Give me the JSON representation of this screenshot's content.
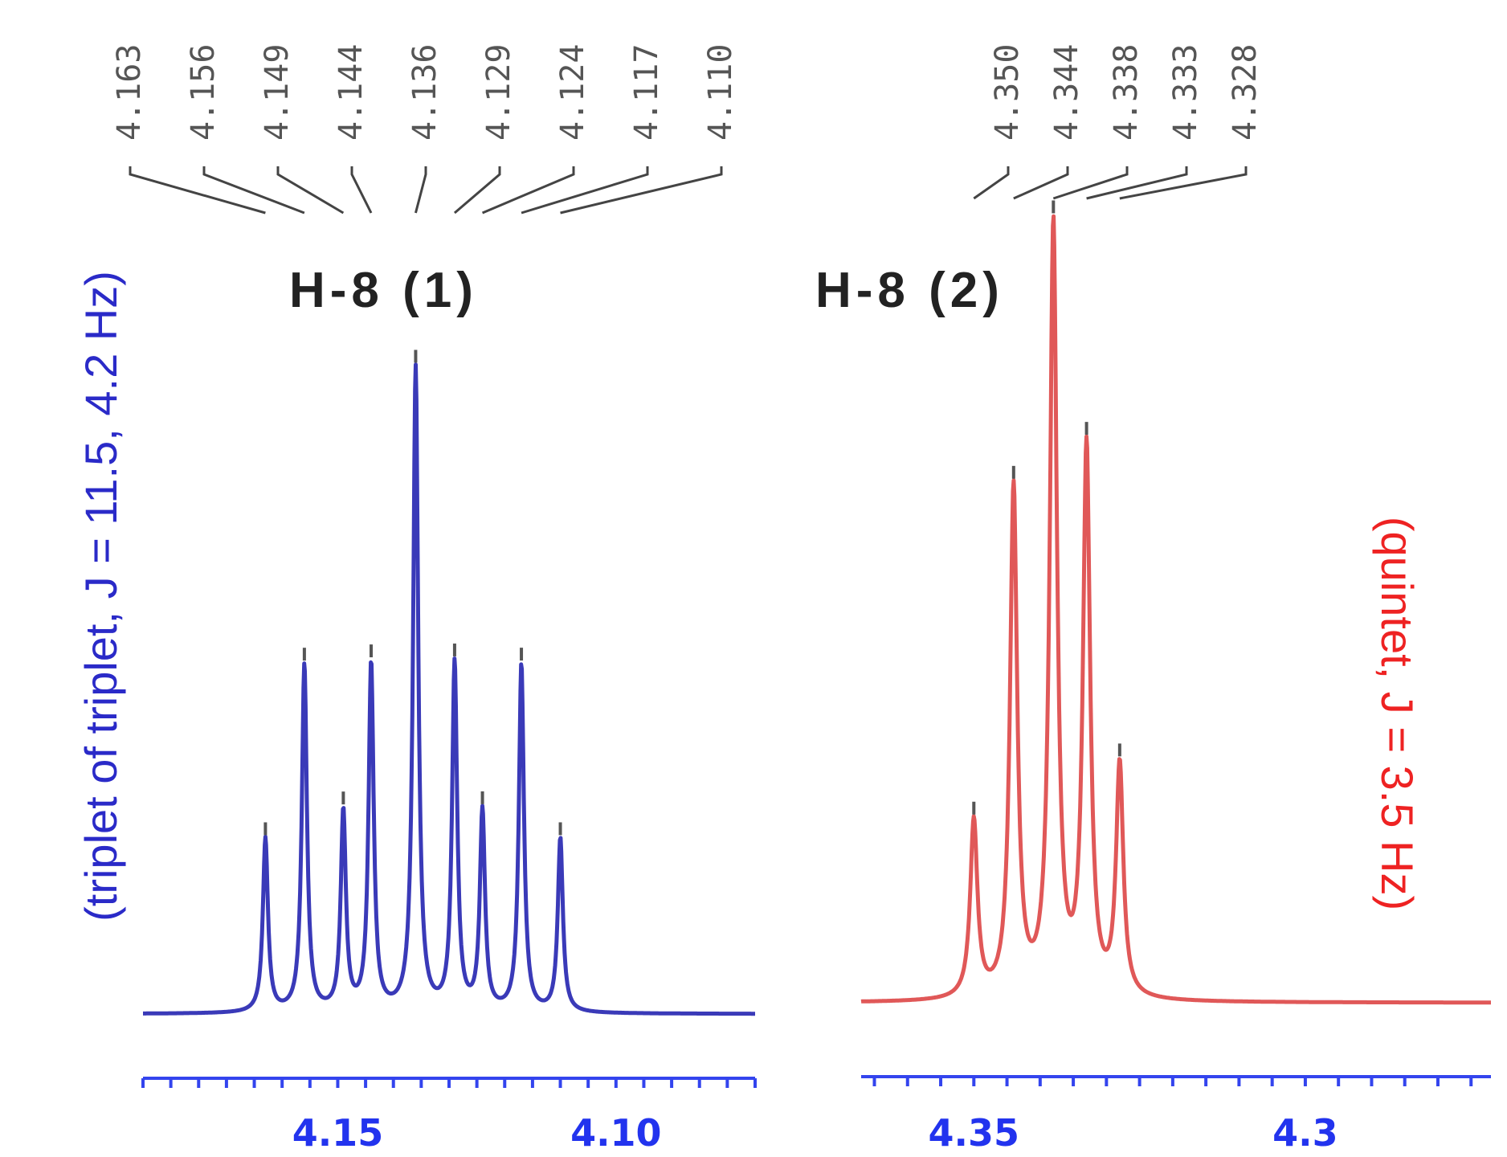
{
  "chart_data": [
    {
      "type": "line",
      "title": "H-8   (1)",
      "ylabel": "(triplet of triplet, J = 11.5, 4.2 Hz)",
      "xlabel": "",
      "x_reversed": true,
      "xlim": [
        4.185,
        4.075
      ],
      "xticks": [
        "4.15",
        "4.10"
      ],
      "peak_labels": [
        "4.163",
        "4.156",
        "4.149",
        "4.144",
        "4.136",
        "4.129",
        "4.124",
        "4.117",
        "4.110"
      ],
      "series": [
        {
          "peaks_ppm": [
            4.163,
            4.156,
            4.149,
            4.144,
            4.136,
            4.129,
            4.124,
            4.117,
            4.11
          ],
          "relative_intensity": [
            0.27,
            0.54,
            0.31,
            0.54,
            1.0,
            0.54,
            0.31,
            0.54,
            0.27
          ],
          "baseline": 0.0,
          "color": "#3a3ab8"
        }
      ],
      "grid": false
    },
    {
      "type": "line",
      "title": "H-8 (2)",
      "ylabel": "(quintet, J = 3.5 Hz)",
      "xlabel": "",
      "x_reversed": true,
      "xlim": [
        4.367,
        4.272
      ],
      "xticks": [
        "4.35",
        "4.3"
      ],
      "peak_labels": [
        "4.350",
        "4.344",
        "4.338",
        "4.333",
        "4.328"
      ],
      "series": [
        {
          "peaks_ppm": [
            4.35,
            4.344,
            4.338,
            4.333,
            4.328
          ],
          "relative_intensity": [
            0.23,
            0.66,
            1.0,
            0.71,
            0.3
          ],
          "baseline": 0.0,
          "color": "#e05858"
        }
      ],
      "grid": false
    }
  ],
  "colors": {
    "axis": "#3344ee",
    "panel1_label": "#2a2ac8",
    "panel2_label": "#ee2222",
    "leader": "#444444"
  }
}
